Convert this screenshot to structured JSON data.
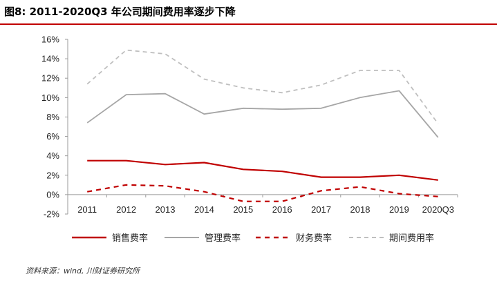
{
  "title": "图8:   2011-2020Q3 年公司期间费用率逐步下降",
  "source": "资料来源：wind, 川财证券研究所",
  "colors": {
    "accent": "#c00000",
    "gray": "#a6a6a6",
    "dashed_gray": "#bfbfbf"
  },
  "chart_data": {
    "type": "line",
    "title": "2011-2020Q3 年公司期间费用率逐步下降",
    "categories": [
      "2011",
      "2012",
      "2013",
      "2014",
      "2015",
      "2016",
      "2017",
      "2018",
      "2019",
      "2020Q3"
    ],
    "ylim": [
      -2,
      16
    ],
    "yticks": [
      -2,
      0,
      2,
      4,
      6,
      8,
      10,
      12,
      14,
      16
    ],
    "ytick_labels": [
      "-2%",
      "0%",
      "2%",
      "4%",
      "6%",
      "8%",
      "10%",
      "12%",
      "14%",
      "16%"
    ],
    "grid": false,
    "legend_position": "bottom",
    "series": [
      {
        "name": "销售费率",
        "color": "#c00000",
        "style": "solid",
        "values": [
          3.5,
          3.5,
          3.1,
          3.3,
          2.6,
          2.4,
          1.8,
          1.8,
          2.0,
          1.5
        ]
      },
      {
        "name": "管理费率",
        "color": "#a6a6a6",
        "style": "solid",
        "values": [
          7.4,
          10.3,
          10.4,
          8.3,
          8.9,
          8.8,
          8.9,
          10.0,
          10.7,
          5.9
        ]
      },
      {
        "name": "财务费率",
        "color": "#c00000",
        "style": "dashed",
        "values": [
          0.3,
          1.0,
          0.9,
          0.3,
          -0.7,
          -0.7,
          0.4,
          0.8,
          0.1,
          -0.2
        ]
      },
      {
        "name": "期间费用率",
        "color": "#bfbfbf",
        "style": "dashed",
        "values": [
          11.4,
          14.9,
          14.5,
          11.9,
          11.0,
          10.5,
          11.3,
          12.8,
          12.8,
          7.3
        ]
      }
    ]
  }
}
